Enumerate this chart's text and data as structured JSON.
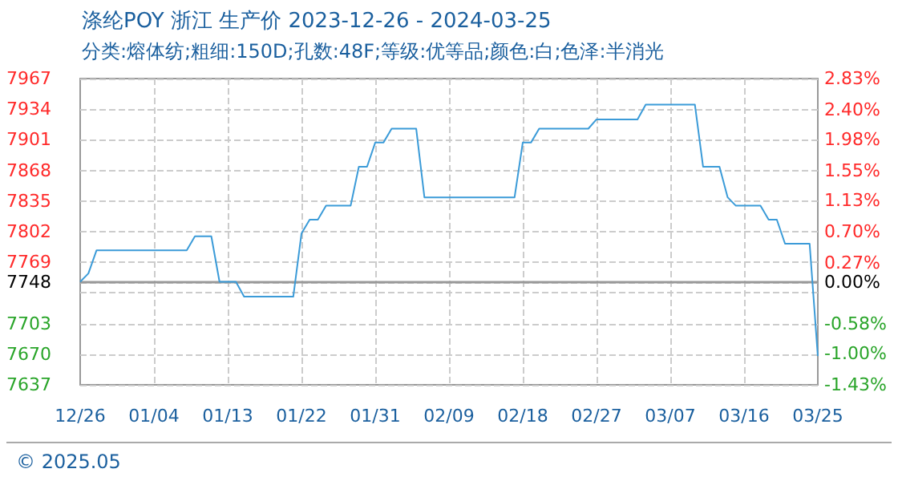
{
  "chart_data": {
    "type": "line",
    "title": "涤纶POY 浙江 生产价 2023-12-26 - 2024-03-25",
    "subtitle": "分类:熔体纺;粗细:150D;孔数:48F;等级:优等品;颜色:白;色泽:半消光",
    "x": [
      "2023-12-26",
      "2023-12-27",
      "2023-12-28",
      "2024-01-08",
      "2024-01-09",
      "2024-01-11",
      "2024-01-12",
      "2024-01-14",
      "2024-01-15",
      "2024-01-21",
      "2024-01-22",
      "2024-01-23",
      "2024-01-24",
      "2024-01-25",
      "2024-01-28",
      "2024-01-29",
      "2024-01-30",
      "2024-01-31",
      "2024-02-01",
      "2024-02-02",
      "2024-02-05",
      "2024-02-06",
      "2024-02-17",
      "2024-02-18",
      "2024-02-19",
      "2024-02-20",
      "2024-02-26",
      "2024-02-27",
      "2024-03-03",
      "2024-03-04",
      "2024-03-10",
      "2024-03-11",
      "2024-03-13",
      "2024-03-14",
      "2024-03-15",
      "2024-03-18",
      "2024-03-19",
      "2024-03-20",
      "2024-03-21",
      "2024-03-24",
      "2024-03-25"
    ],
    "series": [
      {
        "color": "#3b9bd8",
        "values": [
          7748,
          7757,
          7782,
          7782,
          7797,
          7797,
          7748,
          7748,
          7732,
          7732,
          7800,
          7815,
          7815,
          7830,
          7830,
          7872,
          7872,
          7898,
          7898,
          7913,
          7913,
          7839,
          7839,
          7898,
          7898,
          7913,
          7913,
          7923,
          7923,
          7939,
          7939,
          7872,
          7872,
          7839,
          7830,
          7830,
          7815,
          7815,
          7789,
          7789,
          7668
        ]
      }
    ],
    "xlim": [
      "2023-12-26",
      "2024-03-25"
    ],
    "xticks": [
      {
        "value": "2023-12-26",
        "label": "12/26"
      },
      {
        "value": "2024-01-04",
        "label": "01/04"
      },
      {
        "value": "2024-01-13",
        "label": "01/13"
      },
      {
        "value": "2024-01-22",
        "label": "01/22"
      },
      {
        "value": "2024-01-31",
        "label": "01/31"
      },
      {
        "value": "2024-02-09",
        "label": "02/09"
      },
      {
        "value": "2024-02-18",
        "label": "02/18"
      },
      {
        "value": "2024-02-27",
        "label": "02/27"
      },
      {
        "value": "2024-03-07",
        "label": "03/07"
      },
      {
        "value": "2024-03-16",
        "label": "03/16"
      },
      {
        "value": "2024-03-25",
        "label": "03/25"
      }
    ],
    "ylim": [
      7637,
      7967
    ],
    "yticks": [
      7637,
      7670,
      7703,
      {
        "value": 7736,
        "label": null
      },
      7748,
      7769,
      7802,
      7835,
      7868,
      7901,
      7934,
      7967
    ],
    "y2lim": [
      -1.43,
      2.83
    ],
    "y2ticks": [
      {
        "value": -1.43,
        "label": "-1.43%"
      },
      {
        "value": -1.0,
        "label": "-1.00%"
      },
      {
        "value": -0.58,
        "label": "-0.58%"
      },
      {
        "value": -0.15,
        "label": null
      },
      {
        "value": 0,
        "label": "0.00%"
      },
      {
        "value": 0.27,
        "label": "0.27%"
      },
      {
        "value": 0.7,
        "label": "0.70%"
      },
      {
        "value": 1.13,
        "label": "1.13%"
      },
      {
        "value": 1.55,
        "label": "1.55%"
      },
      {
        "value": 1.98,
        "label": "1.98%"
      },
      {
        "value": 2.4,
        "label": "2.40%"
      },
      {
        "value": 2.83,
        "label": "2.83%"
      }
    ],
    "ref_lines": [
      {
        "axis": "y",
        "value": 7748,
        "color": "#999999"
      }
    ],
    "grid": true,
    "marker": "none",
    "line_style": "solid",
    "annotations": [
      "© 2025.05"
    ]
  }
}
